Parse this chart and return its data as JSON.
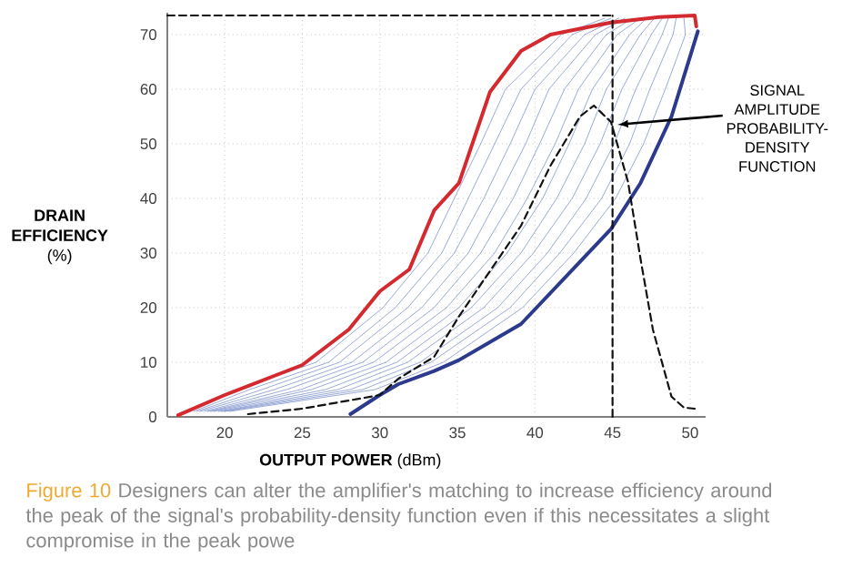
{
  "chart_data": {
    "type": "line",
    "xlabel": "**OUTPUT POWER** (dBm)",
    "ylabel": "**DRAIN EFFICIENCY** (%)",
    "xlim": [
      16.3,
      51
    ],
    "ylim": [
      0,
      74
    ],
    "xticks": [
      20,
      25,
      30,
      35,
      40,
      45,
      50
    ],
    "yticks": [
      0,
      10,
      20,
      30,
      40,
      50,
      60,
      70
    ],
    "grid": true,
    "marker": "none",
    "series": [
      {
        "color": "#6f86c6",
        "x": [
          17.7,
          20.8,
          25.9,
          30.2,
          33.1,
          34.8,
          36.5,
          38.1,
          41.7,
          44.5
        ],
        "values": [
          1,
          5,
          10,
          20,
          30,
          40,
          50,
          60,
          70,
          73
        ]
      },
      {
        "color": "#6f86c6",
        "x": [
          18.0,
          21.6,
          26.7,
          31.0,
          34.0,
          35.7,
          37.4,
          39.1,
          42.4,
          44.9
        ],
        "values": [
          1,
          5,
          10,
          20,
          30,
          40,
          50,
          60,
          70,
          73
        ]
      },
      {
        "color": "#6f86c6",
        "x": [
          18.2,
          22.4,
          27.4,
          31.8,
          34.8,
          36.7,
          38.4,
          40.0,
          43.2,
          45.4
        ],
        "values": [
          1,
          5,
          10,
          20,
          30,
          40,
          50,
          60,
          70,
          73
        ]
      },
      {
        "color": "#6f86c6",
        "x": [
          18.4,
          23.2,
          28.2,
          32.7,
          35.7,
          37.6,
          39.4,
          40.9,
          43.9,
          45.8
        ],
        "values": [
          1,
          5,
          10,
          20,
          30,
          40,
          50,
          60,
          70,
          73
        ]
      },
      {
        "color": "#6f86c6",
        "x": [
          18.7,
          24.0,
          28.9,
          33.5,
          36.5,
          38.6,
          40.3,
          41.9,
          44.6,
          46.3
        ],
        "values": [
          1,
          5,
          10,
          20,
          30,
          40,
          50,
          60,
          70,
          73
        ]
      },
      {
        "color": "#6f86c6",
        "x": [
          18.9,
          24.9,
          29.6,
          34.3,
          37.4,
          39.5,
          41.3,
          42.8,
          45.3,
          46.8
        ],
        "values": [
          1,
          5,
          10,
          20,
          30,
          40,
          50,
          60,
          70,
          73
        ]
      },
      {
        "color": "#6f86c6",
        "x": [
          19.1,
          25.6,
          30.4,
          35.1,
          38.2,
          40.5,
          42.2,
          43.7,
          46.1,
          47.2
        ],
        "values": [
          1,
          5,
          10,
          20,
          30,
          40,
          50,
          60,
          70,
          73
        ]
      },
      {
        "color": "#6f86c6",
        "x": [
          19.3,
          26.5,
          31.1,
          35.9,
          39.1,
          41.4,
          43.2,
          44.6,
          46.8,
          47.7
        ],
        "values": [
          1,
          5,
          10,
          20,
          30,
          40,
          50,
          60,
          70,
          73
        ]
      },
      {
        "color": "#6f86c6",
        "x": [
          19.6,
          27.3,
          31.8,
          36.7,
          39.9,
          42.4,
          44.2,
          45.6,
          47.5,
          48.2
        ],
        "values": [
          1,
          5,
          10,
          20,
          30,
          40,
          50,
          60,
          70,
          73
        ]
      },
      {
        "color": "#6f86c6",
        "x": [
          19.8,
          28.1,
          32.6,
          37.6,
          40.8,
          43.3,
          45.1,
          46.5,
          48.2,
          48.6
        ],
        "values": [
          1,
          5,
          10,
          20,
          30,
          40,
          50,
          60,
          70,
          73
        ]
      },
      {
        "color": "#6f86c6",
        "x": [
          20.0,
          28.9,
          33.3,
          38.4,
          41.6,
          44.3,
          46.1,
          47.4,
          48.9,
          49.1
        ],
        "values": [
          1,
          5,
          10,
          20,
          30,
          40,
          50,
          60,
          70,
          73
        ]
      },
      {
        "color": "#6f86c6",
        "x": [
          20.3,
          29.7,
          34.1,
          39.2,
          42.5,
          45.2,
          47.0,
          48.4,
          49.7,
          49.6
        ],
        "values": [
          1,
          5,
          10,
          20,
          30,
          40,
          50,
          60,
          70,
          73
        ]
      },
      {
        "color": "#d42a2f",
        "x": [
          17,
          20,
          25,
          28,
          30,
          31.9,
          33.5,
          35.1,
          37.1,
          39.1,
          41,
          44.9,
          48,
          50.3,
          50.4
        ],
        "values": [
          0.3,
          4,
          9.5,
          16,
          23,
          27,
          37.8,
          42.8,
          59.5,
          67,
          70,
          72.2,
          73.2,
          73.5,
          71.5
        ]
      },
      {
        "color": "#2b3a8c",
        "x": [
          28.1,
          30,
          31.2,
          33.5,
          35.1,
          39.1,
          42.9,
          44.9,
          46.8,
          48.8,
          50.5
        ],
        "values": [
          0.5,
          4,
          6,
          8.4,
          10.4,
          17,
          28.4,
          34.4,
          42.8,
          55,
          70.6
        ]
      },
      {
        "color": "#111111",
        "line_style": "dashed",
        "x": [
          21.5,
          25,
          30,
          31.2,
          33.5,
          35.1,
          39.1,
          41,
          42.9,
          43.8,
          44.9,
          46,
          46.8,
          47.6,
          48.8,
          49.6,
          50.3
        ],
        "values": [
          0.5,
          1.5,
          4,
          7,
          11,
          18.4,
          35,
          46,
          55,
          57,
          54,
          43,
          29,
          16,
          3.7,
          1.7,
          1.5
        ]
      },
      {
        "color": "#111111",
        "line_style": "dashed",
        "x": [
          16.3,
          45
        ],
        "values": [
          73.5,
          73.5
        ]
      },
      {
        "color": "#111111",
        "line_style": "dashed",
        "x": [
          45,
          45
        ],
        "values": [
          0,
          73.5
        ]
      }
    ],
    "annotations": [
      {
        "text": "SIGNAL AMPLITUDE PROBABILITY-DENSITY FUNCTION",
        "x": 45.3,
        "y": 53.5
      },
      "Figure 10",
      "Designers can alter the amplifier's matching to increase efficiency around the peak of the signal's probability-density function even if this necessitates a slight compromise in the peak powe"
    ]
  }
}
